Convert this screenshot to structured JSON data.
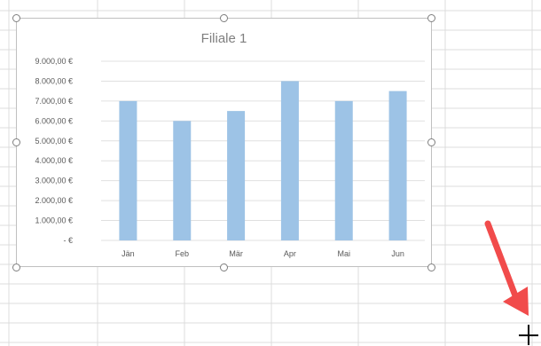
{
  "colors": {
    "bar": "#9dc3e6",
    "gridline": "#e0e0e0",
    "sheet_gridline": "#dcdcdc",
    "arrow": "#f14b4b",
    "title": "#7f7f7f",
    "axis_text": "#595959"
  },
  "icons": {
    "cursor": "crosshair-cursor-icon",
    "arrow": "red-arrow-icon"
  },
  "chart_data": {
    "type": "bar",
    "title": "Filiale 1",
    "categories": [
      "Jän",
      "Feb",
      "Mär",
      "Apr",
      "Mai",
      "Jun"
    ],
    "values": [
      7000,
      6000,
      6500,
      8000,
      7000,
      7500
    ],
    "ylim": [
      0,
      9000
    ],
    "yticks": [
      {
        "value": 9000,
        "label": "9.000,00 €"
      },
      {
        "value": 8000,
        "label": "8.000,00 €"
      },
      {
        "value": 7000,
        "label": "7.000,00 €"
      },
      {
        "value": 6000,
        "label": "6.000,00 €"
      },
      {
        "value": 5000,
        "label": "5.000,00 €"
      },
      {
        "value": 4000,
        "label": "4.000,00 €"
      },
      {
        "value": 3000,
        "label": "3.000,00 €"
      },
      {
        "value": 2000,
        "label": "2.000,00 €"
      },
      {
        "value": 1000,
        "label": "1.000,00 €"
      },
      {
        "value": 0,
        "label": "-   €"
      }
    ],
    "grid": true,
    "legend": "none"
  }
}
